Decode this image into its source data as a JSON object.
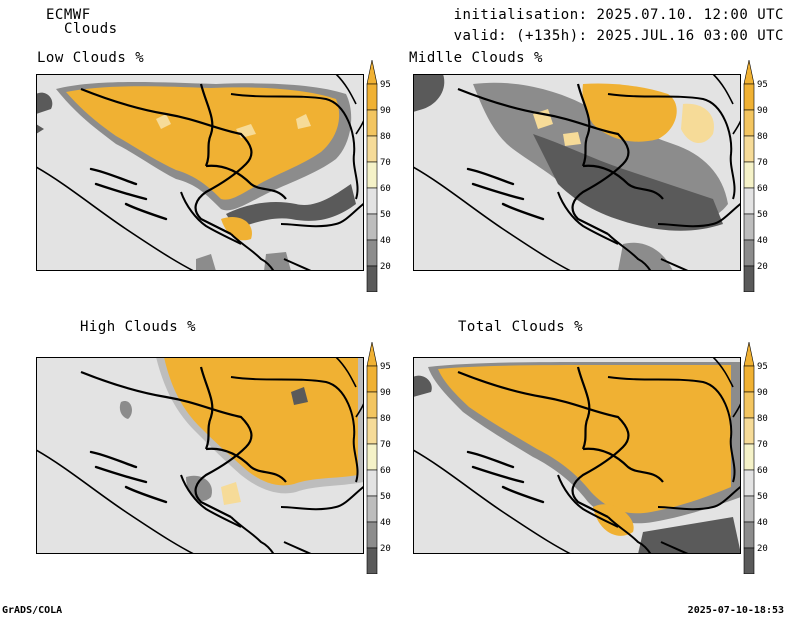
{
  "header": {
    "model": "ECMWF",
    "product": "Clouds",
    "initialisation": "initialisation: 2025.07.10. 12:00 UTC",
    "valid": "valid: (+135h): 2025.JUL.16 03:00 UTC"
  },
  "panels": [
    {
      "title": "Low Clouds %"
    },
    {
      "title": "Midlle Clouds %"
    },
    {
      "title": "High Clouds %"
    },
    {
      "title": "Total Clouds %"
    }
  ],
  "colorbar": {
    "labels": [
      "95",
      "90",
      "80",
      "70",
      "60",
      "50",
      "40",
      "20"
    ],
    "colors": [
      "#f0b133",
      "#f3c560",
      "#f6db98",
      "#f5f2c8",
      "#e3e3e3",
      "#bdbdbd",
      "#8c8c8c",
      "#5a5a5a"
    ]
  },
  "colors": {
    "land_background": "#e3e3e3",
    "cloud_high": "#f0b133",
    "cloud_low_gray": "#555555",
    "cloud_mid_gray": "#9a9a9a"
  },
  "footer": {
    "left": "GrADS/COLA",
    "right": "2025-07-10-18:53"
  }
}
